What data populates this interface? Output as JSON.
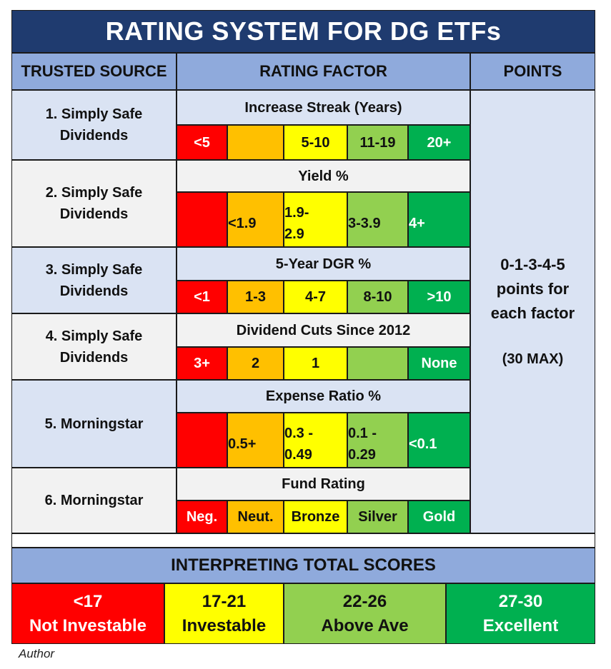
{
  "title": "RATING SYSTEM FOR DG ETFs",
  "headers": {
    "source": "TRUSTED SOURCE",
    "factor": "RATING FACTOR",
    "points": "POINTS"
  },
  "rows": [
    {
      "source_line1": "1. Simply Safe",
      "source_line2": "Dividends",
      "factor": "Increase Streak (Years)",
      "ratings": [
        {
          "line1": "<5",
          "line2": "",
          "color": "#ff0000"
        },
        {
          "line1": "",
          "line2": "",
          "color": "#ffc000"
        },
        {
          "line1": "5-10",
          "line2": "",
          "color": "#ffff00"
        },
        {
          "line1": "11-19",
          "line2": "",
          "color": "#92d050"
        },
        {
          "line1": "20+",
          "line2": "",
          "color": "#00b050"
        }
      ]
    },
    {
      "source_line1": "2. Simply Safe",
      "source_line2": "Dividends",
      "factor": "Yield %",
      "ratings": [
        {
          "line1": "",
          "line2": "",
          "color": "#ff0000"
        },
        {
          "line1": "<1.9",
          "line2": "",
          "color": "#ffc000"
        },
        {
          "line1": "1.9-",
          "line2": "2.9",
          "color": "#ffff00"
        },
        {
          "line1": "3-3.9",
          "line2": "",
          "color": "#92d050"
        },
        {
          "line1": "4+",
          "line2": "",
          "color": "#00b050"
        }
      ]
    },
    {
      "source_line1": "3. Simply Safe",
      "source_line2": "Dividends",
      "factor": "5-Year DGR %",
      "ratings": [
        {
          "line1": "<1",
          "line2": "",
          "color": "#ff0000"
        },
        {
          "line1": "1-3",
          "line2": "",
          "color": "#ffc000"
        },
        {
          "line1": "4-7",
          "line2": "",
          "color": "#ffff00"
        },
        {
          "line1": "8-10",
          "line2": "",
          "color": "#92d050"
        },
        {
          "line1": ">10",
          "line2": "",
          "color": "#00b050"
        }
      ]
    },
    {
      "source_line1": "4. Simply Safe",
      "source_line2": "Dividends",
      "factor": "Dividend Cuts Since 2012",
      "ratings": [
        {
          "line1": "3+",
          "line2": "",
          "color": "#ff0000"
        },
        {
          "line1": "2",
          "line2": "",
          "color": "#ffc000"
        },
        {
          "line1": "1",
          "line2": "",
          "color": "#ffff00"
        },
        {
          "line1": "",
          "line2": "",
          "color": "#92d050"
        },
        {
          "line1": "None",
          "line2": "",
          "color": "#00b050"
        }
      ]
    },
    {
      "source_line1": "5. Morningstar",
      "source_line2": "",
      "factor": "Expense Ratio %",
      "ratings": [
        {
          "line1": "",
          "line2": "",
          "color": "#ff0000"
        },
        {
          "line1": "0.5+",
          "line2": "",
          "color": "#ffc000"
        },
        {
          "line1": "0.3 -",
          "line2": "0.49",
          "color": "#ffff00"
        },
        {
          "line1": "0.1 -",
          "line2": "0.29",
          "color": "#92d050"
        },
        {
          "line1": "<0.1",
          "line2": "",
          "color": "#00b050"
        }
      ]
    },
    {
      "source_line1": "6. Morningstar",
      "source_line2": "",
      "factor": "Fund Rating",
      "ratings": [
        {
          "line1": "Neg.",
          "line2": "",
          "color": "#ff0000"
        },
        {
          "line1": "Neut.",
          "line2": "",
          "color": "#ffc000"
        },
        {
          "line1": "Bronze",
          "line2": "",
          "color": "#ffff00"
        },
        {
          "line1": "Silver",
          "line2": "",
          "color": "#92d050"
        },
        {
          "line1": "Gold",
          "line2": "",
          "color": "#00b050"
        }
      ]
    }
  ],
  "points": {
    "line1": "0-1-3-4-5",
    "line2": "points for",
    "line3": "each factor",
    "max": "(30 MAX)"
  },
  "interpreting": {
    "header": "INTERPRETING TOTAL SCORES",
    "scores": [
      {
        "range": "<17",
        "label": "Not Investable",
        "color": "#ff0000"
      },
      {
        "range": "17-21",
        "label": "Investable",
        "color": "#ffff00"
      },
      {
        "range": "22-26",
        "label": "Above Ave",
        "color": "#92d050"
      },
      {
        "range": "27-30",
        "label": "Excellent",
        "color": "#00b050"
      }
    ]
  },
  "author": "Author"
}
